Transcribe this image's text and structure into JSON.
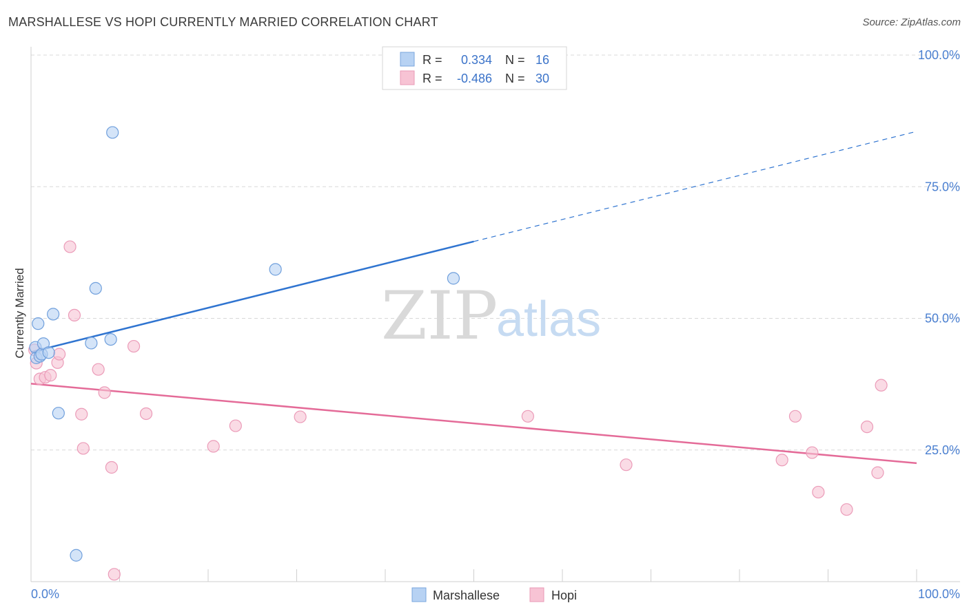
{
  "header": {
    "title": "MARSHALLESE VS HOPI CURRENTLY MARRIED CORRELATION CHART",
    "source": "Source: ZipAtlas.com"
  },
  "watermark": {
    "zip": "ZIP",
    "atlas": "atlas"
  },
  "colors": {
    "marshallese_fill": "#b7d2f3",
    "marshallese_line": "#2f74d0",
    "hopi_fill": "#f7c3d4",
    "hopi_line": "#e46b98",
    "tick_text": "#4a7fd0",
    "grid": "#d8d8d8"
  },
  "legend_top": {
    "rows": [
      {
        "r_label": "R =",
        "r_value": "0.334",
        "n_label": "N =",
        "n_value": "16"
      },
      {
        "r_label": "R =",
        "r_value": "-0.486",
        "n_label": "N =",
        "n_value": "30"
      }
    ]
  },
  "chart_data": {
    "type": "scatter",
    "xlabel": "",
    "ylabel": "Currently Married",
    "xlim": [
      0,
      100
    ],
    "ylim": [
      0,
      100
    ],
    "x_tick_labels": [
      "0.0%",
      "100.0%"
    ],
    "y_ticks": [
      {
        "value": 100,
        "label": "100.0%"
      },
      {
        "value": 75,
        "label": "75.0%"
      },
      {
        "value": 50,
        "label": "50.0%"
      },
      {
        "value": 25,
        "label": "25.0%"
      }
    ],
    "legend": [
      "Marshallese",
      "Hopi"
    ],
    "series": [
      {
        "name": "Marshallese",
        "r": 0.334,
        "n": 16,
        "points": [
          {
            "x": 0.5,
            "y": 44.5
          },
          {
            "x": 0.6,
            "y": 42.5
          },
          {
            "x": 0.8,
            "y": 49.0
          },
          {
            "x": 1.0,
            "y": 42.8
          },
          {
            "x": 1.2,
            "y": 43.2
          },
          {
            "x": 1.4,
            "y": 45.2
          },
          {
            "x": 2.0,
            "y": 43.5
          },
          {
            "x": 2.5,
            "y": 50.8
          },
          {
            "x": 3.1,
            "y": 32.0
          },
          {
            "x": 5.1,
            "y": 5.0
          },
          {
            "x": 6.8,
            "y": 45.3
          },
          {
            "x": 7.3,
            "y": 55.7
          },
          {
            "x": 9.0,
            "y": 46.0
          },
          {
            "x": 9.2,
            "y": 85.3
          },
          {
            "x": 27.6,
            "y": 59.3
          },
          {
            "x": 47.7,
            "y": 57.6
          }
        ],
        "trend": {
          "x0": 0,
          "y0": 43.6,
          "x1": 50,
          "y1": 64.6,
          "x_ext": 100,
          "y_ext": 85.5
        }
      },
      {
        "name": "Hopi",
        "r": -0.486,
        "n": 30,
        "points": [
          {
            "x": 0.4,
            "y": 44.0
          },
          {
            "x": 0.6,
            "y": 41.5
          },
          {
            "x": 1.0,
            "y": 38.5
          },
          {
            "x": 1.6,
            "y": 38.8
          },
          {
            "x": 2.2,
            "y": 39.2
          },
          {
            "x": 3.0,
            "y": 41.6
          },
          {
            "x": 3.2,
            "y": 43.2
          },
          {
            "x": 4.4,
            "y": 63.6
          },
          {
            "x": 4.9,
            "y": 50.6
          },
          {
            "x": 5.7,
            "y": 31.8
          },
          {
            "x": 5.9,
            "y": 25.3
          },
          {
            "x": 7.6,
            "y": 40.3
          },
          {
            "x": 8.3,
            "y": 35.9
          },
          {
            "x": 9.1,
            "y": 21.7
          },
          {
            "x": 9.4,
            "y": 1.4
          },
          {
            "x": 11.6,
            "y": 44.7
          },
          {
            "x": 13.0,
            "y": 31.9
          },
          {
            "x": 20.6,
            "y": 25.7
          },
          {
            "x": 23.1,
            "y": 29.6
          },
          {
            "x": 30.4,
            "y": 31.3
          },
          {
            "x": 56.1,
            "y": 31.4
          },
          {
            "x": 67.2,
            "y": 22.2
          },
          {
            "x": 84.8,
            "y": 23.1
          },
          {
            "x": 86.3,
            "y": 31.4
          },
          {
            "x": 88.2,
            "y": 24.5
          },
          {
            "x": 88.9,
            "y": 17.0
          },
          {
            "x": 92.1,
            "y": 13.7
          },
          {
            "x": 94.4,
            "y": 29.4
          },
          {
            "x": 95.6,
            "y": 20.7
          },
          {
            "x": 96.0,
            "y": 37.3
          }
        ],
        "trend": {
          "x0": 0,
          "y0": 37.6,
          "x1": 100,
          "y1": 22.5
        }
      }
    ]
  }
}
